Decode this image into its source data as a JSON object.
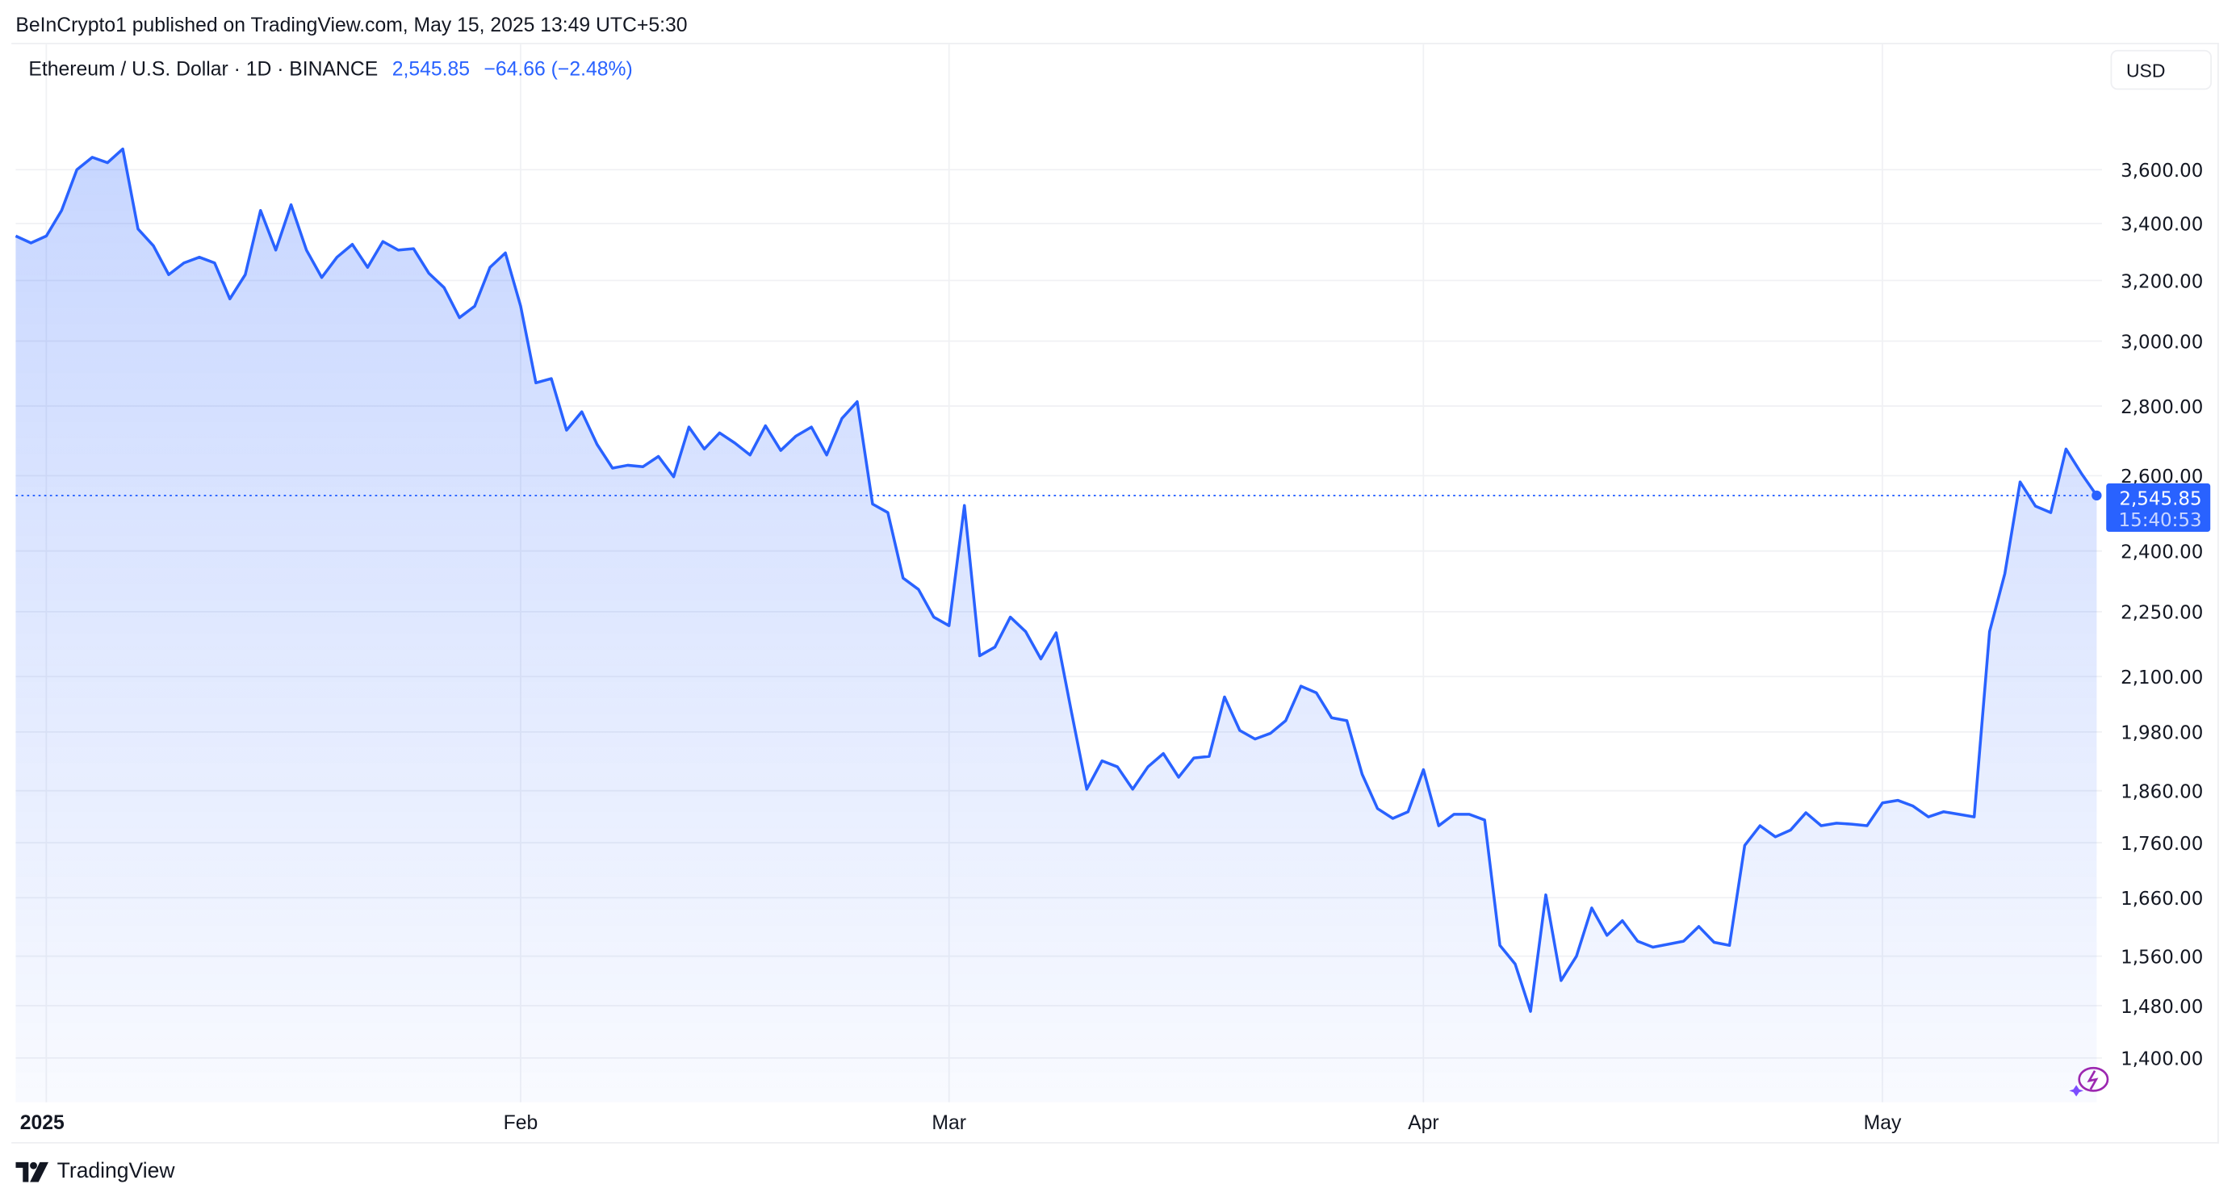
{
  "header": {
    "published": "BeInCrypto1 published on TradingView.com, May 15, 2025 13:49 UTC+5:30"
  },
  "legend": {
    "symbol": "Ethereum / U.S. Dollar · 1D · BINANCE",
    "last": "2,545.85",
    "change": "−64.66 (−2.48%)"
  },
  "currency_button": "USD",
  "price_tag": {
    "price": "2,545.85",
    "countdown": "15:40:53"
  },
  "footer": {
    "brand": "TradingView"
  },
  "colors": {
    "line": "#2962ff",
    "grid": "#f0f1f4",
    "text": "#131722"
  },
  "chart_data": {
    "type": "area",
    "title": "Ethereum / U.S. Dollar · 1D · BINANCE",
    "xlabel": "",
    "ylabel": "USD",
    "y_scale": "log",
    "ylim": [
      1360,
      3760
    ],
    "grid": true,
    "start_date": "2024-12-30",
    "x_ticks": [
      {
        "label": "2025",
        "day_index": 2,
        "bold": true
      },
      {
        "label": "Feb",
        "day_index": 33
      },
      {
        "label": "Mar",
        "day_index": 61
      },
      {
        "label": "Apr",
        "day_index": 92
      },
      {
        "label": "May",
        "day_index": 122
      }
    ],
    "y_ticks": [
      "3,600.00",
      "3,400.00",
      "3,200.00",
      "3,000.00",
      "2,800.00",
      "2,600.00",
      "2,400.00",
      "2,250.00",
      "2,100.00",
      "1,980.00",
      "1,860.00",
      "1,760.00",
      "1,660.00",
      "1,560.00",
      "1,480.00",
      "1,400.00"
    ],
    "y_tick_values": [
      3600,
      3400,
      3200,
      3000,
      2800,
      2600,
      2400,
      2250,
      2100,
      1980,
      1860,
      1760,
      1660,
      1560,
      1480,
      1400
    ],
    "last_value": 2545.85,
    "values": [
      3355,
      3330,
      3355,
      3447,
      3600,
      3648,
      3627,
      3680,
      3380,
      3320,
      3220,
      3260,
      3280,
      3260,
      3138,
      3220,
      3447,
      3305,
      3468,
      3305,
      3210,
      3280,
      3325,
      3245,
      3335,
      3305,
      3310,
      3225,
      3176,
      3076,
      3114,
      3245,
      3295,
      3114,
      2870,
      2883,
      2729,
      2783,
      2688,
      2621,
      2629,
      2625,
      2654,
      2597,
      2738,
      2675,
      2721,
      2692,
      2658,
      2742,
      2671,
      2712,
      2738,
      2658,
      2763,
      2813,
      2523,
      2500,
      2332,
      2304,
      2237,
      2217,
      2519,
      2147,
      2167,
      2237,
      2203,
      2140,
      2200,
      2022,
      1863,
      1920,
      1908,
      1863,
      1908,
      1935,
      1887,
      1926,
      1929,
      2055,
      1983,
      1965,
      1977,
      2004,
      2079,
      2064,
      2010,
      2004,
      1893,
      1825,
      1806,
      1819,
      1902,
      1792,
      1814,
      1814,
      1803,
      1578,
      1547,
      1471,
      1665,
      1520,
      1560,
      1642,
      1595,
      1620,
      1585,
      1575,
      1580,
      1585,
      1610,
      1583,
      1578,
      1755,
      1792,
      1771,
      1784,
      1817,
      1792,
      1797,
      1795,
      1792,
      1836,
      1841,
      1830,
      1809,
      1819,
      1814,
      1809,
      2203,
      2343,
      2583,
      2517,
      2500,
      2675,
      2607,
      2546
    ]
  }
}
